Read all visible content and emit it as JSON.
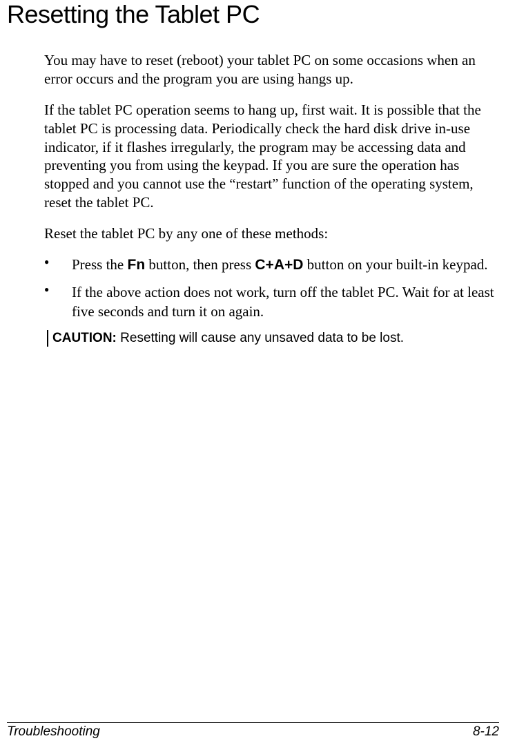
{
  "heading": "Resetting the Tablet PC",
  "para1": "You may have to reset (reboot) your tablet PC on some occasions when an error occurs and the program you are using hangs up.",
  "para2": "If the tablet PC operation seems to hang up, first wait. It is possible that the tablet PC is processing data. Periodically check the hard disk drive in-use indicator, if it flashes irregularly, the program may be accessing data and preventing you from using the keypad. If you are sure the operation has stopped and you cannot use the “restart” function of the operating system, reset the tablet PC.",
  "para3": "Reset the tablet PC by any one of these methods:",
  "bullets": {
    "b1_pre": "Press the ",
    "b1_fn": "Fn",
    "b1_mid": " button, then press ",
    "b1_cad": "C+A+D",
    "b1_post": " button on your built-in keypad.",
    "b2": "If the above action does not work, turn off the tablet PC. Wait for at least five seconds and turn it on again."
  },
  "caution": {
    "label": "CAUTION:",
    "text": " Resetting will cause any unsaved data to be lost."
  },
  "footer": {
    "section": "Troubleshooting",
    "page": "8-12"
  },
  "colors": {
    "text": "#000000",
    "background": "#ffffff",
    "rule": "#000000"
  },
  "fonts": {
    "heading_family": "Arial",
    "body_family": "Times New Roman",
    "caution_family": "Arial",
    "footer_family": "Arial"
  }
}
